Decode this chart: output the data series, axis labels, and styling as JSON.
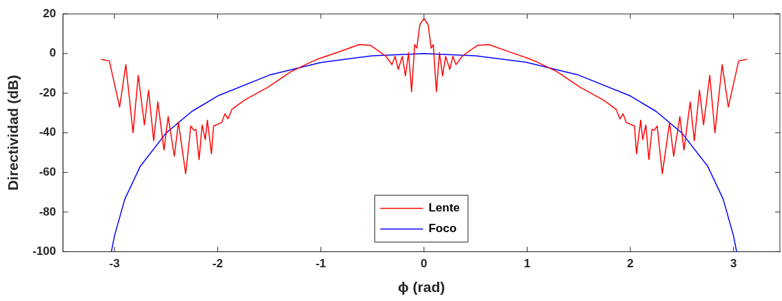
{
  "chart_data": {
    "type": "line",
    "xlabel": "ϕ (rad)",
    "ylabel": "Directividad (dB)",
    "xlim": [
      -3.5,
      3.45
    ],
    "ylim": [
      -100,
      20
    ],
    "xticks": [
      -3,
      -2,
      -1,
      0,
      1,
      2,
      3
    ],
    "yticks": [
      -100,
      -80,
      -60,
      -40,
      -20,
      0,
      20
    ],
    "grid": false,
    "legend": "bottom",
    "marker": "none",
    "line_style": "solid",
    "series": [
      {
        "name": "Lente",
        "color": "#ff0000",
        "x": [
          -3.13,
          -3.05,
          -2.95,
          -2.89,
          -2.82,
          -2.77,
          -2.71,
          -2.67,
          -2.62,
          -2.58,
          -2.52,
          -2.48,
          -2.42,
          -2.38,
          -2.31,
          -2.26,
          -2.23,
          -2.21,
          -2.18,
          -2.15,
          -2.12,
          -2.1,
          -2.06,
          -2.04,
          -1.96,
          -1.93,
          -1.9,
          -1.86,
          -1.74,
          -1.51,
          -1.29,
          -1.1,
          -1.02,
          -0.79,
          -0.63,
          -0.52,
          -0.43,
          -0.37,
          -0.31,
          -0.28,
          -0.25,
          -0.21,
          -0.18,
          -0.15,
          -0.12,
          -0.09,
          -0.07,
          -0.04,
          0,
          0.04,
          0.07,
          0.09,
          0.12,
          0.15,
          0.18,
          0.21,
          0.25,
          0.28,
          0.31,
          0.37,
          0.43,
          0.52,
          0.63,
          0.79,
          1.02,
          1.1,
          1.29,
          1.51,
          1.74,
          1.86,
          1.9,
          1.93,
          1.96,
          2.04,
          2.06,
          2.1,
          2.12,
          2.15,
          2.18,
          2.21,
          2.23,
          2.26,
          2.31,
          2.38,
          2.42,
          2.48,
          2.52,
          2.58,
          2.62,
          2.67,
          2.71,
          2.77,
          2.82,
          2.89,
          2.95,
          3.05,
          3.13
        ],
        "values": [
          -3,
          -3.7,
          -27,
          -5.6,
          -40,
          -11,
          -36,
          -18.5,
          -44,
          -24.4,
          -48.7,
          -31.8,
          -51.8,
          -34.8,
          -60.7,
          -36.6,
          -38.8,
          -38.2,
          -53.5,
          -36,
          -43.5,
          -33.6,
          -50.6,
          -36.6,
          -34.8,
          -30.4,
          -33,
          -28,
          -23.5,
          -16.9,
          -9.2,
          -4.4,
          -2.6,
          1.5,
          4.5,
          4.2,
          0.9,
          -1.4,
          -5.6,
          -1.4,
          -8,
          -1.4,
          -11.3,
          0.4,
          -19.3,
          4.5,
          2.7,
          14.6,
          17.6,
          14.6,
          2.7,
          4.5,
          -19.3,
          0.4,
          -11.3,
          -1.4,
          -8,
          -1.4,
          -5.6,
          -1.4,
          0.9,
          4.2,
          4.5,
          1.5,
          -2.6,
          -4.4,
          -9.2,
          -16.9,
          -23.5,
          -28,
          -33,
          -30.4,
          -34.8,
          -36.6,
          -50.6,
          -33.6,
          -43.5,
          -36,
          -53.5,
          -38.2,
          -38.8,
          -36.6,
          -60.7,
          -34.8,
          -51.8,
          -31.8,
          -48.7,
          -24.4,
          -44,
          -18.5,
          -36,
          -11,
          -40,
          -5.6,
          -27,
          -3.7,
          -3
        ]
      },
      {
        "name": "Foco",
        "color": "#0000ff",
        "x": [
          -3.03,
          -3,
          -2.9,
          -2.75,
          -2.5,
          -2.25,
          -2,
          -1.5,
          -1,
          -0.5,
          0,
          0.5,
          1,
          1.5,
          2,
          2.25,
          2.5,
          2.75,
          2.9,
          3,
          3.03
        ],
        "values": [
          -100,
          -92,
          -73.5,
          -56.9,
          -40.1,
          -29.2,
          -21.4,
          -10.9,
          -4.5,
          -1.1,
          0,
          -1.1,
          -4.5,
          -10.9,
          -21.4,
          -29.2,
          -40.1,
          -56.9,
          -73.5,
          -92,
          -100
        ]
      }
    ]
  }
}
